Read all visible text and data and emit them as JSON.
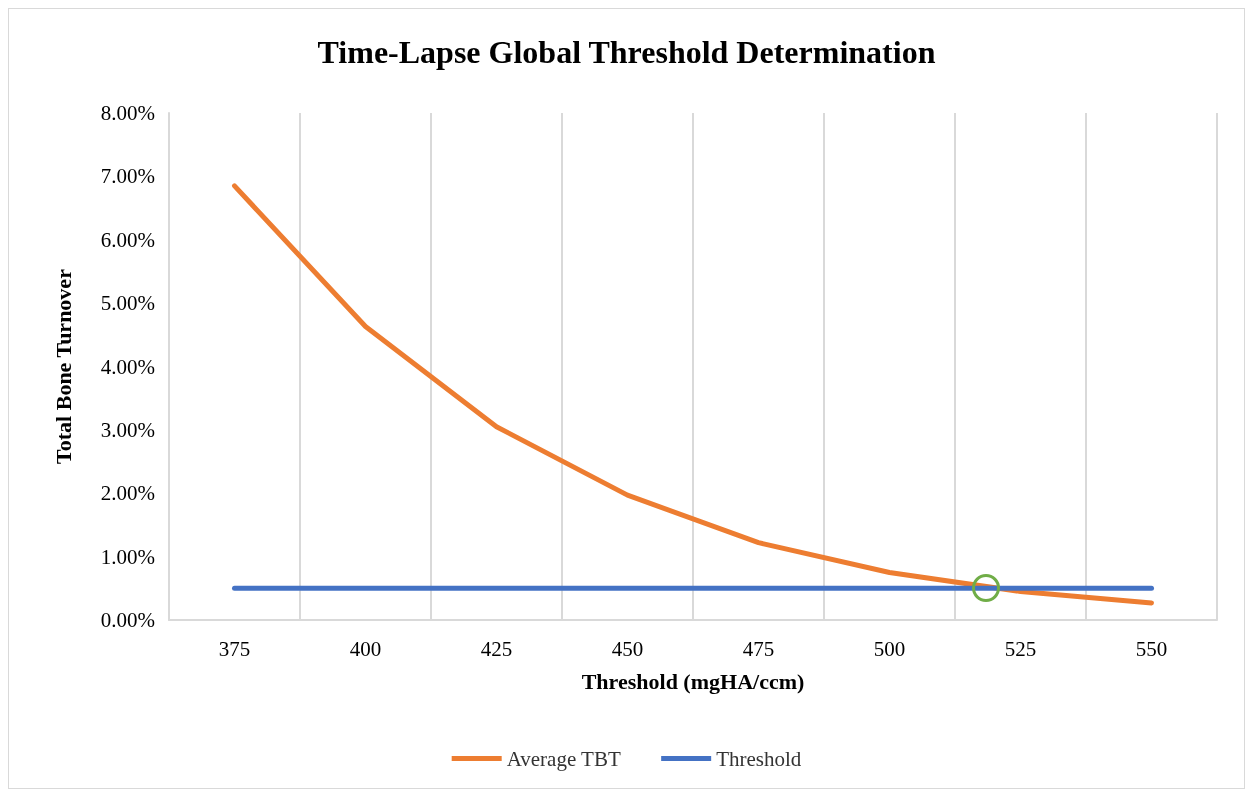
{
  "chart_data": {
    "type": "line",
    "title": "Time-Lapse Global Threshold Determination",
    "xlabel": "Threshold (mgHA/ccm)",
    "ylabel": "Total Bone Turnover",
    "categories": [
      "375",
      "400",
      "425",
      "450",
      "475",
      "500",
      "525",
      "550"
    ],
    "series": [
      {
        "name": "Average TBT",
        "color": "#ed7d31",
        "values": [
          6.85,
          4.63,
          3.05,
          1.97,
          1.22,
          0.75,
          0.45,
          0.27
        ]
      },
      {
        "name": "Threshold",
        "color": "#4472c4",
        "values": [
          0.5,
          0.5,
          0.5,
          0.5,
          0.5,
          0.5,
          0.5,
          0.5
        ]
      }
    ],
    "ylim": [
      0,
      8
    ],
    "yticks": [
      {
        "value": 0,
        "label": "0.00%"
      },
      {
        "value": 1,
        "label": "1.00%"
      },
      {
        "value": 2,
        "label": "2.00%"
      },
      {
        "value": 3,
        "label": "3.00%"
      },
      {
        "value": 4,
        "label": "4.00%"
      },
      {
        "value": 5,
        "label": "5.00%"
      },
      {
        "value": 6,
        "label": "6.00%"
      },
      {
        "value": 7,
        "label": "7.00%"
      },
      {
        "value": 8,
        "label": "8.00%"
      }
    ],
    "grid": "x",
    "legend": "bottom",
    "marker": "none",
    "line_style": "solid"
  }
}
